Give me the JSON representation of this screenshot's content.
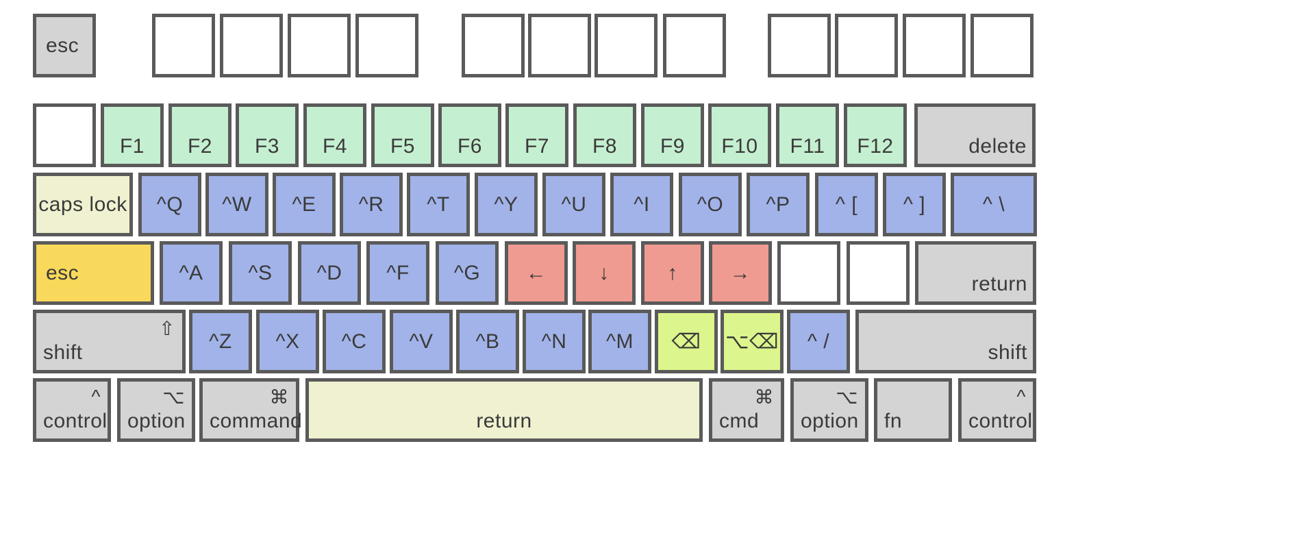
{
  "colors": {
    "gray": "#d4d4d4",
    "white": "#ffffff",
    "green": "#c5efd1",
    "blue": "#a1b3e8",
    "cream": "#f0f1d0",
    "yellow": "#f9d95b",
    "red": "#f09b91",
    "lime": "#dcf58c",
    "border": "#5a5a5a"
  },
  "rows": [
    {
      "name": "function-row",
      "keys": [
        {
          "id": "esc-top",
          "label": "esc",
          "color": "gray",
          "pos": "left"
        },
        {
          "id": "fn-blank-1",
          "label": "",
          "color": "white",
          "pos": "center"
        },
        {
          "id": "fn-blank-2",
          "label": "",
          "color": "white",
          "pos": "center"
        },
        {
          "id": "fn-blank-3",
          "label": "",
          "color": "white",
          "pos": "center"
        },
        {
          "id": "fn-blank-4",
          "label": "",
          "color": "white",
          "pos": "center"
        },
        {
          "id": "fn-blank-5",
          "label": "",
          "color": "white",
          "pos": "center"
        },
        {
          "id": "fn-blank-6",
          "label": "",
          "color": "white",
          "pos": "center"
        },
        {
          "id": "fn-blank-7",
          "label": "",
          "color": "white",
          "pos": "center"
        },
        {
          "id": "fn-blank-8",
          "label": "",
          "color": "white",
          "pos": "center"
        },
        {
          "id": "fn-blank-9",
          "label": "",
          "color": "white",
          "pos": "center"
        },
        {
          "id": "fn-blank-10",
          "label": "",
          "color": "white",
          "pos": "center"
        },
        {
          "id": "fn-blank-11",
          "label": "",
          "color": "white",
          "pos": "center"
        },
        {
          "id": "fn-blank-12",
          "label": "",
          "color": "white",
          "pos": "center"
        }
      ]
    },
    {
      "name": "number-row",
      "keys": [
        {
          "id": "backtick",
          "label": "",
          "color": "white",
          "pos": "center"
        },
        {
          "id": "f1",
          "label": "F1",
          "color": "green",
          "pos": "bottom-center"
        },
        {
          "id": "f2",
          "label": "F2",
          "color": "green",
          "pos": "bottom-center"
        },
        {
          "id": "f3",
          "label": "F3",
          "color": "green",
          "pos": "bottom-center"
        },
        {
          "id": "f4",
          "label": "F4",
          "color": "green",
          "pos": "bottom-center"
        },
        {
          "id": "f5",
          "label": "F5",
          "color": "green",
          "pos": "bottom-center"
        },
        {
          "id": "f6",
          "label": "F6",
          "color": "green",
          "pos": "bottom-center"
        },
        {
          "id": "f7",
          "label": "F7",
          "color": "green",
          "pos": "bottom-center"
        },
        {
          "id": "f8",
          "label": "F8",
          "color": "green",
          "pos": "bottom-center"
        },
        {
          "id": "f9",
          "label": "F9",
          "color": "green",
          "pos": "bottom-center"
        },
        {
          "id": "f10",
          "label": "F10",
          "color": "green",
          "pos": "bottom-center"
        },
        {
          "id": "f11",
          "label": "F11",
          "color": "green",
          "pos": "bottom-center"
        },
        {
          "id": "f12",
          "label": "F12",
          "color": "green",
          "pos": "bottom-center"
        },
        {
          "id": "delete",
          "label": "delete",
          "color": "gray",
          "pos": "bottom-right"
        }
      ]
    },
    {
      "name": "qwerty-row",
      "keys": [
        {
          "id": "caps-lock",
          "label": "caps lock",
          "color": "cream",
          "pos": "center"
        },
        {
          "id": "ctrl-q",
          "label": "^Q",
          "color": "blue",
          "pos": "center"
        },
        {
          "id": "ctrl-w",
          "label": "^W",
          "color": "blue",
          "pos": "center"
        },
        {
          "id": "ctrl-e",
          "label": "^E",
          "color": "blue",
          "pos": "center"
        },
        {
          "id": "ctrl-r",
          "label": "^R",
          "color": "blue",
          "pos": "center"
        },
        {
          "id": "ctrl-t",
          "label": "^T",
          "color": "blue",
          "pos": "center"
        },
        {
          "id": "ctrl-y",
          "label": "^Y",
          "color": "blue",
          "pos": "center"
        },
        {
          "id": "ctrl-u",
          "label": "^U",
          "color": "blue",
          "pos": "center"
        },
        {
          "id": "ctrl-i",
          "label": "^I",
          "color": "blue",
          "pos": "center"
        },
        {
          "id": "ctrl-o",
          "label": "^O",
          "color": "blue",
          "pos": "center"
        },
        {
          "id": "ctrl-p",
          "label": "^P",
          "color": "blue",
          "pos": "center"
        },
        {
          "id": "ctrl-lbracket",
          "label": "^ [",
          "color": "blue",
          "pos": "center"
        },
        {
          "id": "ctrl-rbracket",
          "label": "^ ]",
          "color": "blue",
          "pos": "center"
        },
        {
          "id": "ctrl-backslash",
          "label": "^ \\",
          "color": "blue",
          "pos": "center"
        }
      ]
    },
    {
      "name": "home-row",
      "keys": [
        {
          "id": "esc-caps",
          "label": "esc",
          "color": "yellow",
          "pos": "left"
        },
        {
          "id": "ctrl-a",
          "label": "^A",
          "color": "blue",
          "pos": "center"
        },
        {
          "id": "ctrl-s",
          "label": "^S",
          "color": "blue",
          "pos": "center"
        },
        {
          "id": "ctrl-d",
          "label": "^D",
          "color": "blue",
          "pos": "center"
        },
        {
          "id": "ctrl-f",
          "label": "^F",
          "color": "blue",
          "pos": "center"
        },
        {
          "id": "ctrl-g",
          "label": "^G",
          "color": "blue",
          "pos": "center"
        },
        {
          "id": "arrow-left",
          "label": "←",
          "color": "red",
          "pos": "center"
        },
        {
          "id": "arrow-down",
          "label": "↓",
          "color": "red",
          "pos": "center"
        },
        {
          "id": "arrow-up",
          "label": "↑",
          "color": "red",
          "pos": "center"
        },
        {
          "id": "arrow-right",
          "label": "→",
          "color": "red",
          "pos": "center"
        },
        {
          "id": "semicolon",
          "label": "",
          "color": "white",
          "pos": "center"
        },
        {
          "id": "quote",
          "label": "",
          "color": "white",
          "pos": "center"
        },
        {
          "id": "return",
          "label": "return",
          "color": "gray",
          "pos": "bottom-right"
        }
      ]
    },
    {
      "name": "bottom-letter-row",
      "keys": [
        {
          "id": "shift-left",
          "label": "shift",
          "symbol": "⇧",
          "color": "gray",
          "pos": "bottom-left"
        },
        {
          "id": "ctrl-z",
          "label": "^Z",
          "color": "blue",
          "pos": "center"
        },
        {
          "id": "ctrl-x",
          "label": "^X",
          "color": "blue",
          "pos": "center"
        },
        {
          "id": "ctrl-c",
          "label": "^C",
          "color": "blue",
          "pos": "center"
        },
        {
          "id": "ctrl-v",
          "label": "^V",
          "color": "blue",
          "pos": "center"
        },
        {
          "id": "ctrl-b",
          "label": "^B",
          "color": "blue",
          "pos": "center"
        },
        {
          "id": "ctrl-n",
          "label": "^N",
          "color": "blue",
          "pos": "center"
        },
        {
          "id": "ctrl-m",
          "label": "^M",
          "color": "blue",
          "pos": "center"
        },
        {
          "id": "backspace",
          "label": "⌫",
          "color": "lime",
          "pos": "center"
        },
        {
          "id": "option-backspace",
          "label": "⌥⌫",
          "color": "lime",
          "pos": "center"
        },
        {
          "id": "ctrl-slash",
          "label": "^ /",
          "color": "blue",
          "pos": "center"
        },
        {
          "id": "shift-right",
          "label": "shift",
          "color": "gray",
          "pos": "bottom-right"
        }
      ]
    },
    {
      "name": "modifier-row",
      "keys": [
        {
          "id": "control-left",
          "label": "control",
          "symbol": "^",
          "color": "gray",
          "pos": "bottom-left"
        },
        {
          "id": "option-left",
          "label": "option",
          "symbol": "⌥",
          "color": "gray",
          "pos": "bottom-left"
        },
        {
          "id": "command-left",
          "label": "command",
          "symbol": "⌘",
          "color": "gray",
          "pos": "bottom-left"
        },
        {
          "id": "space-return",
          "label": "return",
          "color": "cream",
          "pos": "bottom-center"
        },
        {
          "id": "cmd-right",
          "label": "cmd",
          "symbol": "⌘",
          "color": "gray",
          "pos": "bottom-left"
        },
        {
          "id": "option-right",
          "label": "option",
          "symbol": "⌥",
          "color": "gray",
          "pos": "bottom-left"
        },
        {
          "id": "fn",
          "label": "fn",
          "color": "gray",
          "pos": "bottom-left"
        },
        {
          "id": "control-right",
          "label": "control",
          "symbol": "^",
          "color": "gray",
          "pos": "bottom-left"
        }
      ]
    }
  ]
}
